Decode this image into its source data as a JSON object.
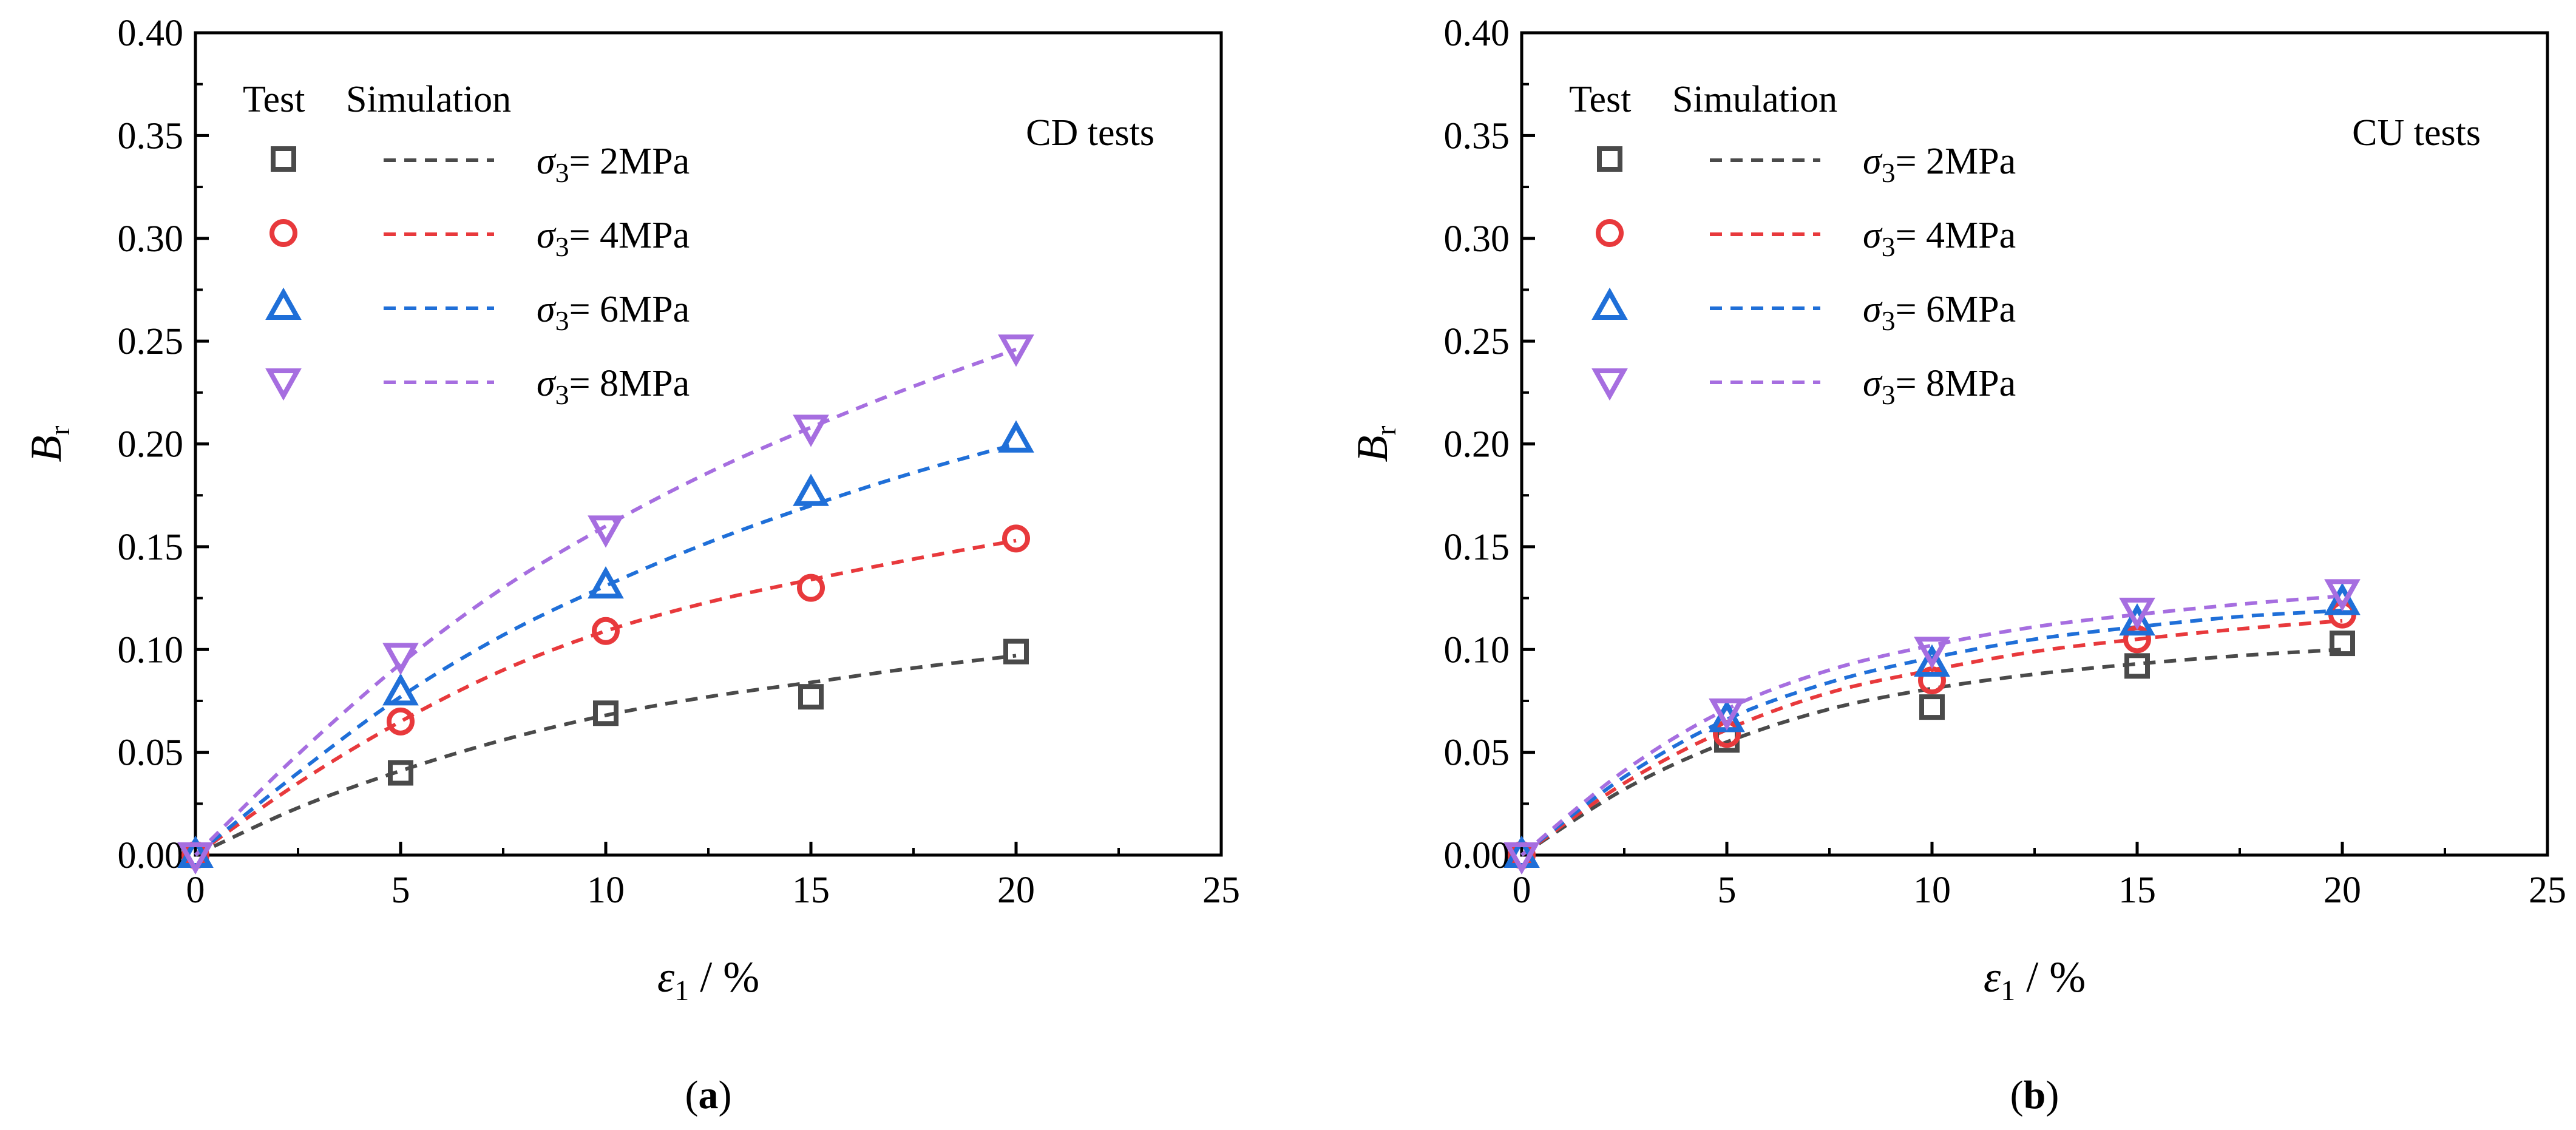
{
  "chart_data": [
    {
      "type": "scatter",
      "panel_label": "(a)",
      "panel_letter": "a",
      "annotation": "CD tests",
      "xlabel": {
        "symbol": "ε",
        "sub": "1",
        "suffix": " / %"
      },
      "ylabel": {
        "symbol": "B",
        "sub": "r"
      },
      "xlim": [
        0,
        25
      ],
      "ylim": [
        0,
        0.4
      ],
      "xticks": [
        0,
        5,
        10,
        15,
        20,
        25
      ],
      "yticks": [
        0.0,
        0.05,
        0.1,
        0.15,
        0.2,
        0.25,
        0.3,
        0.35,
        0.4
      ],
      "grid": false,
      "legend": {
        "position": "top-left",
        "header_test": "Test",
        "header_sim": "Simulation"
      },
      "series": [
        {
          "label_symbol": "σ",
          "label_sub": "3",
          "label_rest": "= 2MPa",
          "color": "#4a4a4a",
          "marker": "square",
          "test_x": [
            0,
            5,
            10,
            15,
            20
          ],
          "test_y": [
            0.0,
            0.04,
            0.069,
            0.077,
            0.099
          ],
          "sim_x": [
            0,
            2.5,
            5,
            7.5,
            10,
            12.5,
            15,
            17.5,
            20
          ],
          "sim_y": [
            0.0,
            0.023,
            0.041,
            0.056,
            0.068,
            0.077,
            0.084,
            0.091,
            0.097
          ]
        },
        {
          "label_symbol": "σ",
          "label_sub": "3",
          "label_rest": "= 4MPa",
          "color": "#e8393c",
          "marker": "circle",
          "test_x": [
            0,
            5,
            10,
            15,
            20
          ],
          "test_y": [
            0.0,
            0.065,
            0.109,
            0.13,
            0.154
          ],
          "sim_x": [
            0,
            2.5,
            5,
            7.5,
            10,
            12.5,
            15,
            17.5,
            20
          ],
          "sim_y": [
            0.0,
            0.035,
            0.065,
            0.09,
            0.109,
            0.123,
            0.134,
            0.144,
            0.153
          ]
        },
        {
          "label_symbol": "σ",
          "label_sub": "3",
          "label_rest": "= 6MPa",
          "color": "#1f6fd8",
          "marker": "triangle-up",
          "test_x": [
            0,
            5,
            10,
            15,
            20
          ],
          "test_y": [
            0.0,
            0.079,
            0.131,
            0.176,
            0.202
          ],
          "sim_x": [
            0,
            2.5,
            5,
            7.5,
            10,
            12.5,
            15,
            17.5,
            20
          ],
          "sim_y": [
            0.0,
            0.04,
            0.077,
            0.107,
            0.131,
            0.152,
            0.17,
            0.186,
            0.2
          ]
        },
        {
          "label_symbol": "σ",
          "label_sub": "3",
          "label_rest": "= 8MPa",
          "color": "#a66ee0",
          "marker": "triangle-down",
          "test_x": [
            0,
            5,
            10,
            15,
            20
          ],
          "test_y": [
            0.0,
            0.097,
            0.159,
            0.208,
            0.247
          ],
          "sim_x": [
            0,
            2.5,
            5,
            7.5,
            10,
            12.5,
            15,
            17.5,
            20
          ],
          "sim_y": [
            0.0,
            0.049,
            0.093,
            0.13,
            0.16,
            0.186,
            0.208,
            0.228,
            0.246
          ]
        }
      ]
    },
    {
      "type": "scatter",
      "panel_label": "(b)",
      "panel_letter": "b",
      "annotation": "CU tests",
      "xlabel": {
        "symbol": "ε",
        "sub": "1",
        "suffix": " / %"
      },
      "ylabel": {
        "symbol": "B",
        "sub": "r"
      },
      "xlim": [
        0,
        25
      ],
      "ylim": [
        0,
        0.4
      ],
      "xticks": [
        0,
        5,
        10,
        15,
        20,
        25
      ],
      "yticks": [
        0.0,
        0.05,
        0.1,
        0.15,
        0.2,
        0.25,
        0.3,
        0.35,
        0.4
      ],
      "grid": false,
      "legend": {
        "position": "top-left",
        "header_test": "Test",
        "header_sim": "Simulation"
      },
      "series": [
        {
          "label_symbol": "σ",
          "label_sub": "3",
          "label_rest": "= 2MPa",
          "color": "#4a4a4a",
          "marker": "square",
          "test_x": [
            0,
            5,
            10,
            15,
            20
          ],
          "test_y": [
            0.0,
            0.056,
            0.072,
            0.092,
            0.103
          ],
          "sim_x": [
            0,
            2.5,
            5,
            7.5,
            10,
            12.5,
            15,
            17.5,
            20
          ],
          "sim_y": [
            0.0,
            0.032,
            0.055,
            0.071,
            0.081,
            0.088,
            0.093,
            0.097,
            0.1
          ]
        },
        {
          "label_symbol": "σ",
          "label_sub": "3",
          "label_rest": "= 4MPa",
          "color": "#e8393c",
          "marker": "circle",
          "test_x": [
            0,
            5,
            10,
            15,
            20
          ],
          "test_y": [
            0.0,
            0.059,
            0.085,
            0.105,
            0.117
          ],
          "sim_x": [
            0,
            2.5,
            5,
            7.5,
            10,
            12.5,
            15,
            17.5,
            20
          ],
          "sim_y": [
            0.0,
            0.035,
            0.061,
            0.079,
            0.09,
            0.099,
            0.105,
            0.11,
            0.114
          ]
        },
        {
          "label_symbol": "σ",
          "label_sub": "3",
          "label_rest": "= 6MPa",
          "color": "#1f6fd8",
          "marker": "triangle-up",
          "test_x": [
            0,
            5,
            10,
            15,
            20
          ],
          "test_y": [
            0.0,
            0.066,
            0.093,
            0.113,
            0.123
          ],
          "sim_x": [
            0,
            2.5,
            5,
            7.5,
            10,
            12.5,
            15,
            17.5,
            20
          ],
          "sim_y": [
            0.0,
            0.038,
            0.066,
            0.084,
            0.096,
            0.105,
            0.111,
            0.116,
            0.119
          ]
        },
        {
          "label_symbol": "σ",
          "label_sub": "3",
          "label_rest": "= 8MPa",
          "color": "#a66ee0",
          "marker": "triangle-down",
          "test_x": [
            0,
            5,
            10,
            15,
            20
          ],
          "test_y": [
            0.0,
            0.07,
            0.1,
            0.119,
            0.128
          ],
          "sim_x": [
            0,
            2.5,
            5,
            7.5,
            10,
            12.5,
            15,
            17.5,
            20
          ],
          "sim_y": [
            0.0,
            0.041,
            0.071,
            0.09,
            0.102,
            0.111,
            0.117,
            0.122,
            0.126
          ]
        }
      ]
    }
  ]
}
